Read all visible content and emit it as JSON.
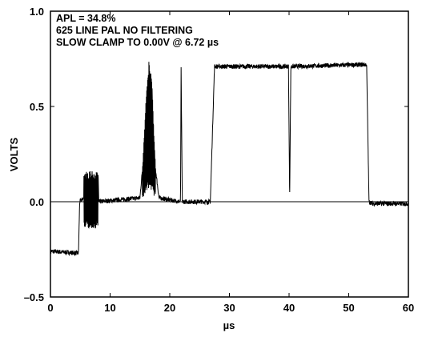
{
  "chart_data": {
    "type": "line",
    "annotations": [
      "APL = 34.8%",
      "625 LINE PAL NO FILTERING",
      "SLOW CLAMP TO 0.00V @ 6.72 µs"
    ],
    "xlabel": "µs",
    "ylabel": "VOLTS",
    "xlim": [
      0,
      60
    ],
    "ylim": [
      -0.5,
      1.0
    ],
    "x_ticks": [
      0,
      10,
      20,
      30,
      40,
      50,
      60
    ],
    "x_tick_labels": [
      "0",
      "10",
      "20",
      "30",
      "40",
      "50",
      "60"
    ],
    "y_ticks": [
      -0.5,
      0.0,
      0.5,
      1.0
    ],
    "y_tick_labels": [
      "–0.5",
      "0.0",
      "0.5",
      "1.0"
    ],
    "reference_line_y": 0.0,
    "grid": false,
    "color": "#000000",
    "series": [
      {
        "x": [
          0,
          4.7,
          4.9,
          5.6,
          5.7,
          8.0,
          8.1,
          15.0,
          15.5,
          16.0,
          16.5,
          17.0,
          17.5,
          18.2,
          21.8,
          21.9,
          22.1,
          22.3,
          26.8,
          27.5,
          39.9,
          40.1,
          40.3,
          53.0,
          53.4,
          54.0,
          60.0
        ],
        "y": [
          -0.26,
          -0.27,
          0.0,
          0.02,
          0.14,
          0.14,
          0.0,
          0.02,
          0.2,
          0.5,
          0.7,
          0.6,
          0.2,
          0.02,
          0.0,
          0.7,
          0.0,
          0.0,
          0.0,
          0.71,
          0.71,
          0.02,
          0.71,
          0.72,
          0.0,
          -0.01,
          -0.01
        ]
      }
    ]
  }
}
